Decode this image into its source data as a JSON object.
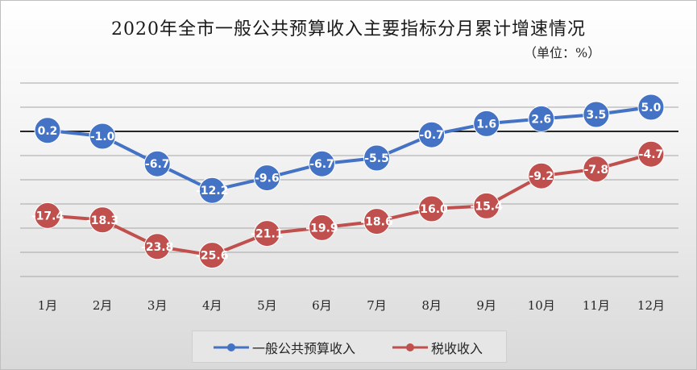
{
  "chart_data": {
    "type": "line",
    "title": "2020年全市一般公共预算收入主要指标分月累计增速情况",
    "unit_label": "（单位：%）",
    "categories": [
      "1月",
      "2月",
      "3月",
      "4月",
      "5月",
      "6月",
      "7月",
      "8月",
      "9月",
      "10月",
      "11月",
      "12月"
    ],
    "series": [
      {
        "name": "一般公共预算收入",
        "color": "#4472c4",
        "values": [
          0.2,
          -1.0,
          -6.7,
          -12.2,
          -9.6,
          -6.7,
          -5.5,
          -0.7,
          1.6,
          2.6,
          3.5,
          5.0
        ]
      },
      {
        "name": "税收收入",
        "color": "#c0504d",
        "values": [
          -17.4,
          -18.3,
          -23.8,
          -25.6,
          -21.1,
          -19.9,
          -18.6,
          -16.0,
          -15.4,
          -9.2,
          -7.8,
          -4.7
        ]
      }
    ],
    "ylim": [
      -30,
      10
    ],
    "grid": true,
    "legend_position": "bottom"
  }
}
